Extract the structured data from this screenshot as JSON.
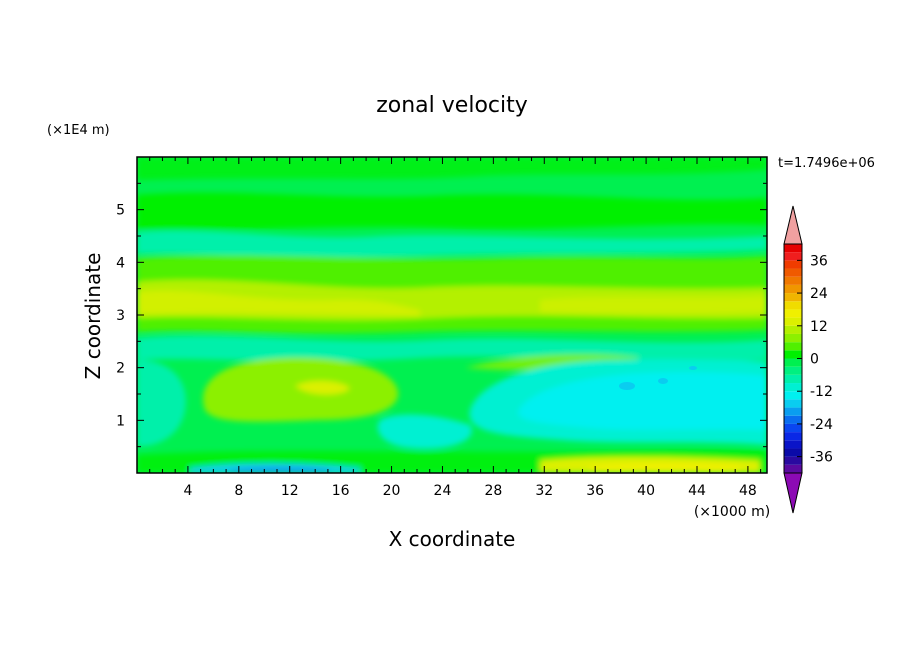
{
  "chart_data": {
    "type": "contour",
    "title": "zonal velocity",
    "xlabel": "X coordinate",
    "ylabel": "Z coordinate",
    "x_unit": "(×1000 m)",
    "y_unit": "(×1E4 m)",
    "time_label": "t=1.7496e+06",
    "xlim": [
      0,
      49.5
    ],
    "ylim": [
      0,
      6
    ],
    "x_ticks": [
      4,
      8,
      12,
      16,
      20,
      24,
      28,
      32,
      36,
      40,
      44,
      48
    ],
    "y_ticks": [
      1,
      2,
      3,
      4,
      5
    ],
    "colorbar": {
      "levels": [
        -42,
        -39,
        -36,
        -33,
        -30,
        -27,
        -24,
        -21,
        -18,
        -15,
        -12,
        -9,
        -6,
        -3,
        0,
        3,
        6,
        9,
        12,
        15,
        18,
        21,
        24,
        27,
        30,
        33,
        36,
        39,
        42
      ],
      "tick_labels": [
        36,
        24,
        12,
        0,
        -12,
        -24,
        -36
      ],
      "colors": [
        "#5a0aa0",
        "#2a0aa0",
        "#0a0aa8",
        "#0a14c8",
        "#0a28e6",
        "#0a46f0",
        "#0a6ef0",
        "#0a9ef0",
        "#0acdf0",
        "#00f0f0",
        "#00f0d2",
        "#00f0aa",
        "#00f080",
        "#00f050",
        "#00f000",
        "#50f000",
        "#8cf000",
        "#b4f000",
        "#dcf000",
        "#f0f000",
        "#f0dc00",
        "#f0b400",
        "#f09600",
        "#f07800",
        "#f05a00",
        "#f03c00",
        "#f01e1e",
        "#e60000"
      ],
      "over_color": "#f0a0a0",
      "under_color": "#8c0ab4"
    }
  }
}
